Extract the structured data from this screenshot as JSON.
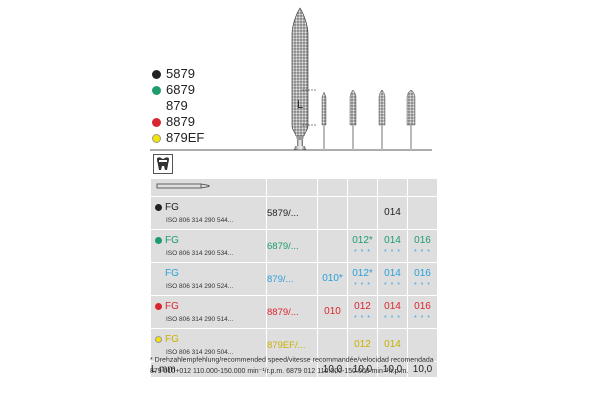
{
  "colors": {
    "black": "#222222",
    "green": "#1e9c6c",
    "blue": "#2aa0d8",
    "red": "#d9252f",
    "yellow": "#e2c700",
    "cell": "#dedede"
  },
  "variants": [
    {
      "code": "5879",
      "color": "#222222"
    },
    {
      "code": "6879",
      "color": "#1e9c6c"
    },
    {
      "code": "879",
      "color": ""
    },
    {
      "code": "8879",
      "color": "#d9252f"
    },
    {
      "code": "879EF",
      "color": "#f2e600"
    }
  ],
  "L_label": "L",
  "icon": "tooth-icon",
  "rows": [
    {
      "system": "FG",
      "iso": "ISO 806 314 290 544...",
      "ref": "5879/...",
      "color": "#222222",
      "dot": "#222222",
      "sizes": [
        "",
        "",
        "014",
        ""
      ],
      "stars": [
        "",
        "",
        "",
        ""
      ]
    },
    {
      "system": "FG",
      "iso": "ISO 806 314 290 534...",
      "ref": "6879/...",
      "color": "#1e9c6c",
      "dot": "#1e9c6c",
      "sizes": [
        "",
        "012*",
        "014",
        "016"
      ],
      "stars": [
        "",
        "* * *",
        "* * *",
        "* * *"
      ]
    },
    {
      "system": "FG",
      "iso": "ISO 806 314 290 524...",
      "ref": "879/...",
      "color": "#2aa0d8",
      "dot": "",
      "sizes": [
        "010*",
        "012*",
        "014",
        "016"
      ],
      "stars": [
        "",
        "* * *",
        "* * *",
        "* * *"
      ]
    },
    {
      "system": "FG",
      "iso": "ISO 806 314 290 514...",
      "ref": "8879/...",
      "color": "#d9252f",
      "dot": "#d9252f",
      "sizes": [
        "010",
        "012",
        "014",
        "016"
      ],
      "stars": [
        "",
        "* * *",
        "* * *",
        "* * *"
      ]
    },
    {
      "system": "FG",
      "iso": "ISO 806 314 290 504...",
      "ref": "879EF/...",
      "color": "#c8b000",
      "dot": "#f2e600",
      "sizes": [
        "",
        "012",
        "014",
        ""
      ],
      "stars": [
        "",
        "",
        "",
        ""
      ]
    }
  ],
  "lrow": {
    "label": "L mm",
    "values": [
      "10,0",
      "10,0",
      "10,0",
      "10,0"
    ]
  },
  "footnote1": "* Drehzahlempfehlung/recommended speed/vitesse recommandée/velocidad recomendada",
  "footnote2": "879  010+012   110.000-150.000 min⁻¹/r.p.m.      6879  012   110.000-150.000 min⁻¹/r.p.m."
}
